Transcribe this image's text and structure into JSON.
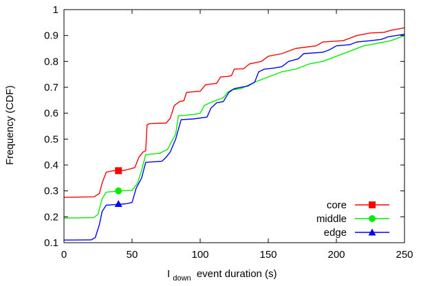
{
  "chart_data": {
    "type": "line",
    "xlabel_main": "I",
    "xlabel_sub": "down",
    "xlabel_rest": "event duration (s)",
    "ylabel": "Frequency (CDF)",
    "xlim": [
      0,
      250
    ],
    "ylim": [
      0.1,
      1.0
    ],
    "xticks": [
      "0",
      "50",
      "100",
      "150",
      "200",
      "250"
    ],
    "yticks": [
      "0.1",
      "0.2",
      "0.3",
      "0.4",
      "0.5",
      "0.6",
      "0.7",
      "0.8",
      "0.9",
      "1"
    ],
    "grid": false,
    "legend_position": "bottom-right",
    "series": [
      {
        "name": "core",
        "color": "#ff0000",
        "marker": "square",
        "marker_at": [
          40,
          0.378
        ],
        "points": [
          [
            0,
            0.275
          ],
          [
            22,
            0.277
          ],
          [
            26,
            0.29
          ],
          [
            28,
            0.33
          ],
          [
            31,
            0.372
          ],
          [
            36,
            0.378
          ],
          [
            45,
            0.38
          ],
          [
            52,
            0.39
          ],
          [
            55,
            0.43
          ],
          [
            58,
            0.45
          ],
          [
            60,
            0.455
          ],
          [
            61,
            0.555
          ],
          [
            63,
            0.56
          ],
          [
            75,
            0.562
          ],
          [
            78,
            0.58
          ],
          [
            81,
            0.63
          ],
          [
            85,
            0.645
          ],
          [
            88,
            0.648
          ],
          [
            90,
            0.68
          ],
          [
            93,
            0.682
          ],
          [
            100,
            0.685
          ],
          [
            104,
            0.71
          ],
          [
            112,
            0.715
          ],
          [
            115,
            0.74
          ],
          [
            120,
            0.742
          ],
          [
            123,
            0.745
          ],
          [
            125,
            0.77
          ],
          [
            132,
            0.772
          ],
          [
            136,
            0.79
          ],
          [
            145,
            0.8
          ],
          [
            150,
            0.82
          ],
          [
            160,
            0.83
          ],
          [
            170,
            0.85
          ],
          [
            185,
            0.86
          ],
          [
            190,
            0.875
          ],
          [
            205,
            0.88
          ],
          [
            215,
            0.9
          ],
          [
            225,
            0.91
          ],
          [
            235,
            0.912
          ],
          [
            240,
            0.92
          ],
          [
            250,
            0.93
          ]
        ]
      },
      {
        "name": "middle",
        "color": "#00ee00",
        "marker": "circle",
        "marker_at": [
          40,
          0.3
        ],
        "points": [
          [
            0,
            0.195
          ],
          [
            22,
            0.197
          ],
          [
            25,
            0.21
          ],
          [
            28,
            0.27
          ],
          [
            31,
            0.295
          ],
          [
            40,
            0.3
          ],
          [
            50,
            0.302
          ],
          [
            54,
            0.33
          ],
          [
            57,
            0.38
          ],
          [
            60,
            0.44
          ],
          [
            70,
            0.445
          ],
          [
            76,
            0.46
          ],
          [
            79,
            0.49
          ],
          [
            82,
            0.52
          ],
          [
            84,
            0.59
          ],
          [
            95,
            0.595
          ],
          [
            100,
            0.6
          ],
          [
            103,
            0.63
          ],
          [
            107,
            0.64
          ],
          [
            112,
            0.65
          ],
          [
            117,
            0.66
          ],
          [
            120,
            0.68
          ],
          [
            123,
            0.69
          ],
          [
            130,
            0.695
          ],
          [
            140,
            0.72
          ],
          [
            150,
            0.74
          ],
          [
            160,
            0.76
          ],
          [
            170,
            0.77
          ],
          [
            180,
            0.79
          ],
          [
            190,
            0.8
          ],
          [
            200,
            0.82
          ],
          [
            210,
            0.84
          ],
          [
            220,
            0.86
          ],
          [
            230,
            0.87
          ],
          [
            240,
            0.88
          ],
          [
            250,
            0.9
          ]
        ]
      },
      {
        "name": "edge",
        "color": "#0000ff",
        "marker": "triangle",
        "marker_at": [
          40,
          0.25
        ],
        "points": [
          [
            0,
            0.11
          ],
          [
            20,
            0.111
          ],
          [
            23,
            0.12
          ],
          [
            26,
            0.17
          ],
          [
            28,
            0.22
          ],
          [
            31,
            0.245
          ],
          [
            45,
            0.25
          ],
          [
            50,
            0.255
          ],
          [
            53,
            0.31
          ],
          [
            57,
            0.35
          ],
          [
            60,
            0.41
          ],
          [
            72,
            0.415
          ],
          [
            75,
            0.43
          ],
          [
            78,
            0.45
          ],
          [
            82,
            0.5
          ],
          [
            86,
            0.575
          ],
          [
            95,
            0.578
          ],
          [
            105,
            0.585
          ],
          [
            108,
            0.62
          ],
          [
            112,
            0.64
          ],
          [
            117,
            0.645
          ],
          [
            121,
            0.68
          ],
          [
            125,
            0.695
          ],
          [
            135,
            0.705
          ],
          [
            140,
            0.72
          ],
          [
            143,
            0.76
          ],
          [
            147,
            0.77
          ],
          [
            155,
            0.775
          ],
          [
            160,
            0.78
          ],
          [
            165,
            0.8
          ],
          [
            172,
            0.81
          ],
          [
            176,
            0.83
          ],
          [
            190,
            0.835
          ],
          [
            195,
            0.845
          ],
          [
            200,
            0.86
          ],
          [
            210,
            0.865
          ],
          [
            215,
            0.875
          ],
          [
            225,
            0.88
          ],
          [
            233,
            0.885
          ],
          [
            238,
            0.895
          ],
          [
            250,
            0.905
          ]
        ]
      }
    ]
  }
}
